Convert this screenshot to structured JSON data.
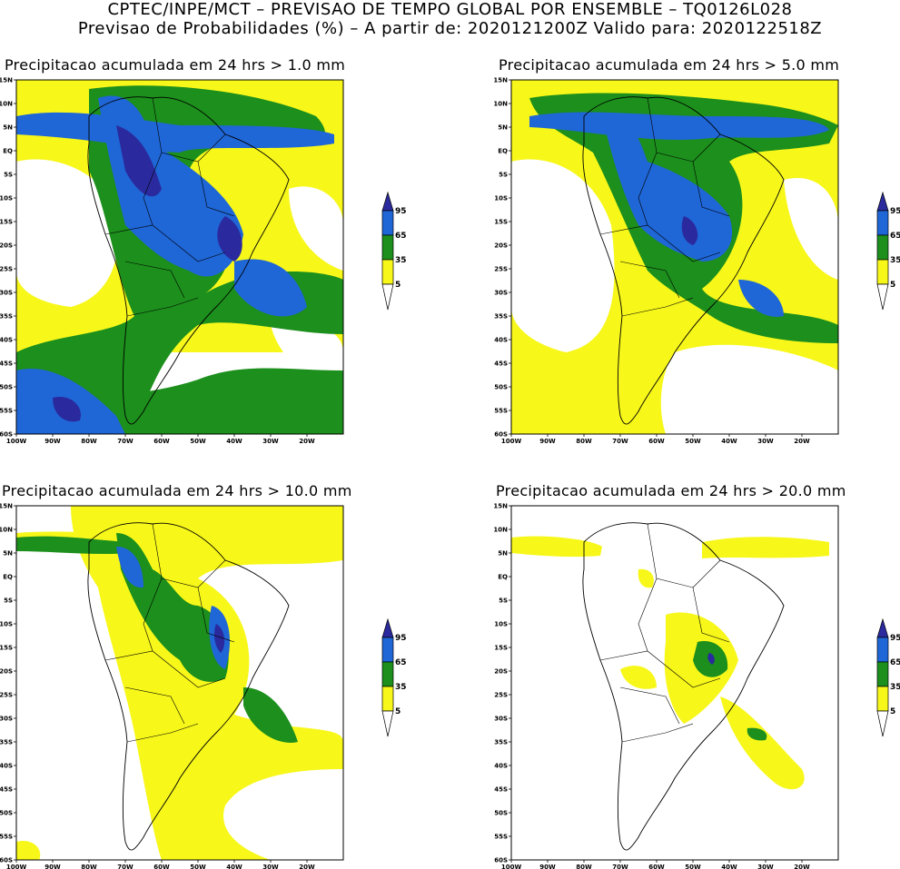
{
  "header": {
    "line1": "CPTEC/INPE/MCT – PREVISAO DE TEMPO GLOBAL POR ENSEMBLE – TQ0126L028",
    "line2": "Previsao de Probabilidades (%) –   A partir de: 2020121200Z  Valido para: 2020122518Z"
  },
  "axes": {
    "lat_labels": [
      "15N",
      "10N",
      "5N",
      "EQ",
      "5S",
      "10S",
      "15S",
      "20S",
      "25S",
      "30S",
      "35S",
      "40S",
      "45S",
      "50S",
      "55S",
      "60S"
    ],
    "lon_labels": [
      "100W",
      "90W",
      "80W",
      "70W",
      "60W",
      "50W",
      "40W",
      "30W",
      "20W"
    ],
    "lat_range": [
      -60,
      15
    ],
    "lon_range": [
      -100,
      -10
    ]
  },
  "colorbar": {
    "levels": [
      "95",
      "65",
      "35",
      "5"
    ],
    "colors": [
      "#2a2a9e",
      "#1f66d6",
      "#1c8f1c",
      "#f7f71a"
    ],
    "outline": "#000000"
  },
  "panels": [
    {
      "id": "p1",
      "title": "Precipitacao acumulada em 24 hrs > 1.0 mm",
      "threshold_mm": 1.0
    },
    {
      "id": "p2",
      "title": "Precipitacao acumulada em 24 hrs > 5.0 mm",
      "threshold_mm": 5.0
    },
    {
      "id": "p3",
      "title": "Precipitacao acumulada em 24 hrs > 10.0 mm",
      "threshold_mm": 10.0
    },
    {
      "id": "p4",
      "title": "Precipitacao acumulada em 24 hrs > 20.0 mm",
      "threshold_mm": 20.0
    }
  ]
}
